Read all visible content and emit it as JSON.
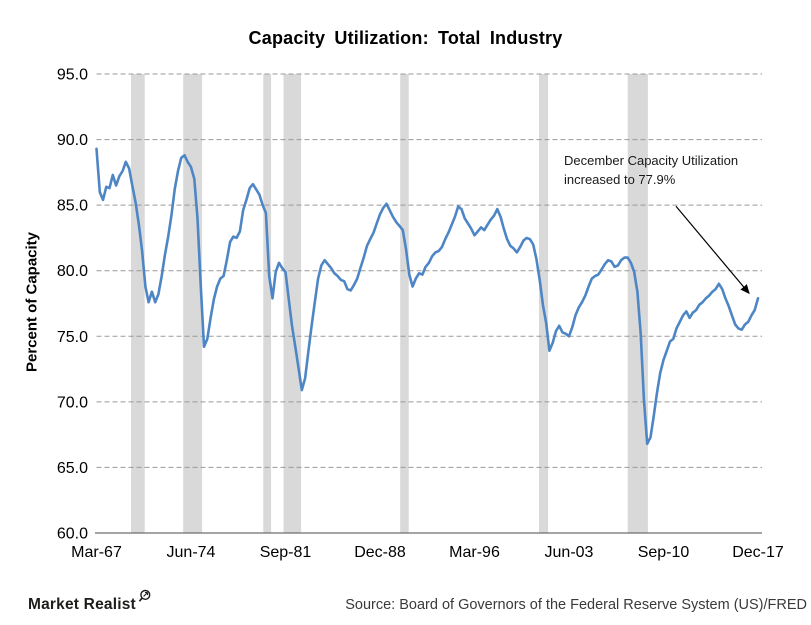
{
  "title": "Capacity Utilization: Total Industry",
  "y_axis_title": "Percent of Capacity",
  "annotation": {
    "line1": "December Capacity Utilization",
    "line2": "increased to 77.9%"
  },
  "footer": {
    "brand": "Market Realist",
    "brand_icon": "magnifier-icon",
    "source": "Source: Board of Governors of the Federal Reserve System (US)/FRED"
  },
  "colors": {
    "line": "#4e86c5",
    "recession_band": "#d9d9d9",
    "gridline": "#999999",
    "axis_line": "#6e6e6e",
    "arrow": "#000000"
  },
  "chart_data": {
    "type": "line",
    "title": "Capacity Utilization: Total Industry",
    "xlabel": "",
    "ylabel": "Percent of Capacity",
    "ylim": [
      60,
      95
    ],
    "grid": "dashed-horizontal",
    "legend": false,
    "series_name": "Capacity Utilization (%, Total Industry)",
    "x_start": 1967.25,
    "x_step": 0.25,
    "y_ticks": [
      {
        "v": 95,
        "label": "95.0"
      },
      {
        "v": 90,
        "label": "90.0"
      },
      {
        "v": 85,
        "label": "85.0"
      },
      {
        "v": 80,
        "label": "80.0"
      },
      {
        "v": 75,
        "label": "75.0"
      },
      {
        "v": 70,
        "label": "70.0"
      },
      {
        "v": 65,
        "label": "65.0"
      },
      {
        "v": 60,
        "label": "60.0"
      }
    ],
    "x_ticks": [
      {
        "t": 1967.25,
        "label": "Mar-67"
      },
      {
        "t": 1974.5,
        "label": "Jun-74"
      },
      {
        "t": 1981.75,
        "label": "Sep-81"
      },
      {
        "t": 1989.0,
        "label": "Dec-88"
      },
      {
        "t": 1996.25,
        "label": "Mar-96"
      },
      {
        "t": 2003.5,
        "label": "Jun-03"
      },
      {
        "t": 2010.75,
        "label": "Sep-10"
      },
      {
        "t": 2018.0,
        "label": "Dec-17"
      }
    ],
    "recessions": [
      [
        1969.9,
        1970.95
      ],
      [
        1973.9,
        1975.35
      ],
      [
        1980.05,
        1980.65
      ],
      [
        1981.6,
        1982.95
      ],
      [
        1990.55,
        1991.2
      ],
      [
        2001.2,
        2001.9
      ],
      [
        2008.0,
        2009.55
      ]
    ],
    "values": [
      89.3,
      86.0,
      85.4,
      86.4,
      86.3,
      87.3,
      86.5,
      87.2,
      87.6,
      88.3,
      87.8,
      86.5,
      85.2,
      83.5,
      81.5,
      78.8,
      77.6,
      78.4,
      77.6,
      78.2,
      79.6,
      81.2,
      82.6,
      84.2,
      86.2,
      87.6,
      88.6,
      88.8,
      88.3,
      87.9,
      87.0,
      84.0,
      78.8,
      74.2,
      74.8,
      76.4,
      77.8,
      78.8,
      79.4,
      79.6,
      80.8,
      82.2,
      82.6,
      82.5,
      83.0,
      84.6,
      85.4,
      86.3,
      86.6,
      86.2,
      85.8,
      85.0,
      84.4,
      79.6,
      77.9,
      79.9,
      80.6,
      80.2,
      79.9,
      77.8,
      75.8,
      74.2,
      72.6,
      70.9,
      71.8,
      73.8,
      75.8,
      77.6,
      79.4,
      80.4,
      80.8,
      80.5,
      80.2,
      79.8,
      79.6,
      79.3,
      79.2,
      78.6,
      78.5,
      78.9,
      79.4,
      80.2,
      81.0,
      81.9,
      82.4,
      82.9,
      83.6,
      84.3,
      84.8,
      85.1,
      84.6,
      84.1,
      83.7,
      83.4,
      83.1,
      81.6,
      79.7,
      78.8,
      79.4,
      79.8,
      79.7,
      80.3,
      80.6,
      81.1,
      81.4,
      81.5,
      81.8,
      82.4,
      82.9,
      83.5,
      84.1,
      84.9,
      84.7,
      84.0,
      83.6,
      83.2,
      82.7,
      83.0,
      83.3,
      83.1,
      83.5,
      83.9,
      84.2,
      84.7,
      84.1,
      83.2,
      82.4,
      81.9,
      81.7,
      81.4,
      81.8,
      82.3,
      82.5,
      82.4,
      82.0,
      80.9,
      79.3,
      77.4,
      76.0,
      73.9,
      74.5,
      75.4,
      75.8,
      75.3,
      75.2,
      75.0,
      75.7,
      76.6,
      77.2,
      77.6,
      78.1,
      78.8,
      79.4,
      79.6,
      79.7,
      80.1,
      80.5,
      80.8,
      80.7,
      80.3,
      80.4,
      80.8,
      81.0,
      81.0,
      80.6,
      79.9,
      78.4,
      75.2,
      70.2,
      66.8,
      67.3,
      68.9,
      70.7,
      72.2,
      73.2,
      73.9,
      74.6,
      74.8,
      75.6,
      76.1,
      76.6,
      76.9,
      76.4,
      76.8,
      77.0,
      77.4,
      77.6,
      77.9,
      78.1,
      78.4,
      78.6,
      79.0,
      78.6,
      77.9,
      77.3,
      76.6,
      75.9,
      75.6,
      75.5,
      75.9,
      76.1,
      76.6,
      77.0,
      77.9
    ]
  }
}
